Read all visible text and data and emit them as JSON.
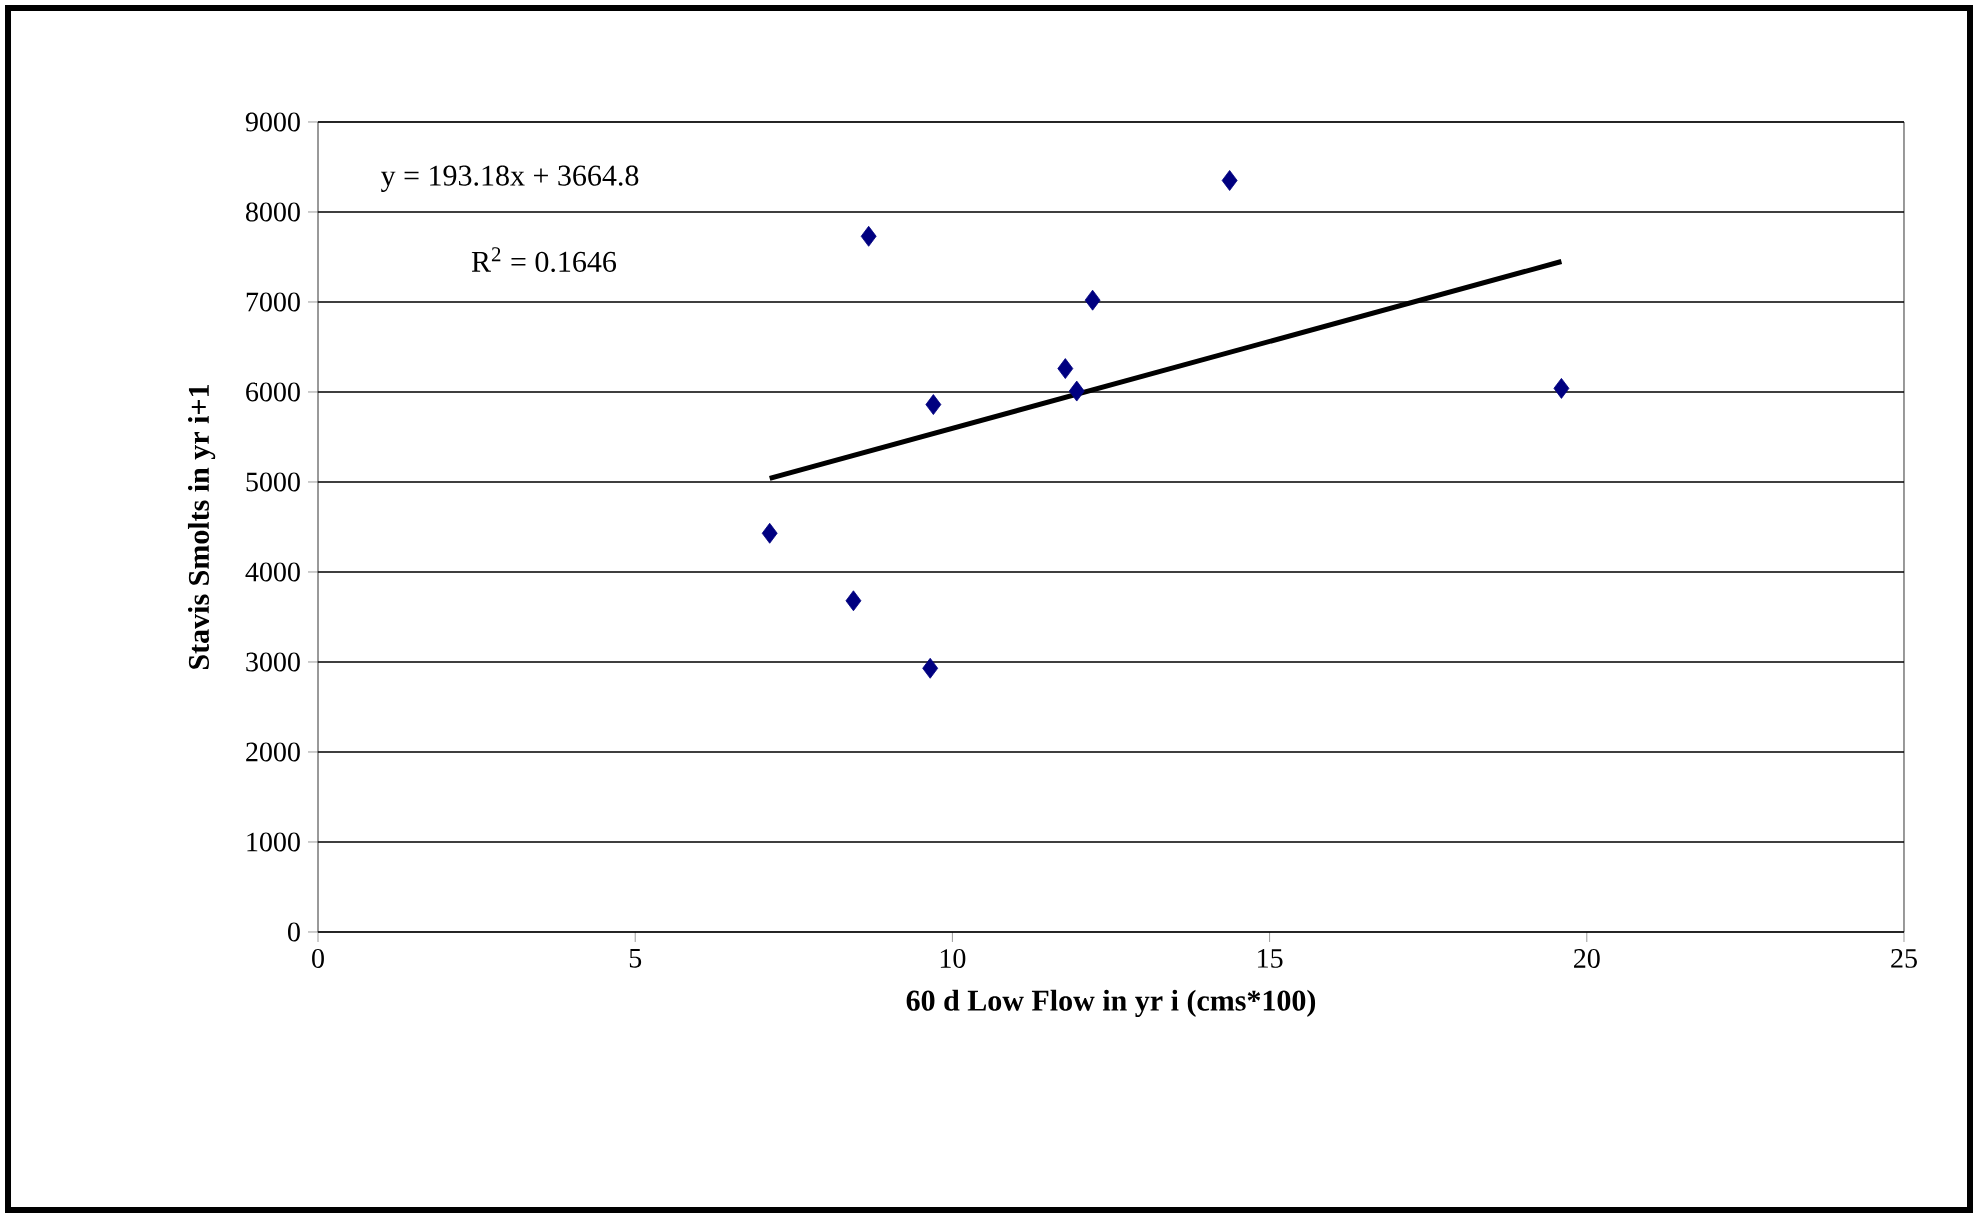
{
  "chart_data": {
    "type": "scatter",
    "xlabel": "60 d Low Flow in yr i (cms*100)",
    "ylabel": "Stavis Smolts in yr i+1",
    "annotations": [
      "y = 193.18x + 3664.8",
      "R$^{2}$ = 0.1646"
    ],
    "series": [
      {
        "color": "#000080",
        "marker": "diamond",
        "x": [
          7.12,
          8.44,
          9.65,
          8.68,
          9.7,
          11.78,
          11.96,
          12.21,
          14.37,
          19.6
        ],
        "values": [
          4430,
          3680,
          2930,
          7730,
          5860,
          6260,
          6010,
          7020,
          8350,
          6040
        ]
      },
      {
        "type": "line",
        "color": "#000000",
        "marker": "none",
        "x": [
          7.12,
          19.6
        ],
        "values": [
          5040,
          7450
        ]
      }
    ],
    "xlim": [
      0,
      25
    ],
    "xticks": [
      0,
      5,
      10,
      15,
      20,
      25
    ],
    "ylim": [
      0,
      9000
    ],
    "yticks": [
      0,
      1000,
      2000,
      3000,
      4000,
      5000,
      6000,
      7000,
      8000,
      9000
    ],
    "grid": "y"
  }
}
